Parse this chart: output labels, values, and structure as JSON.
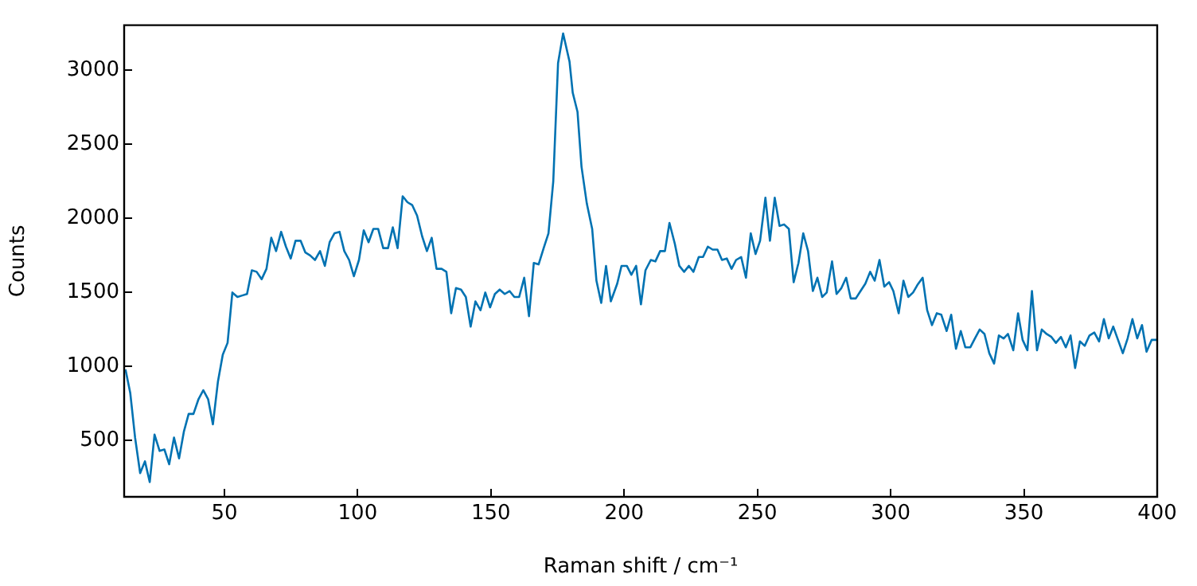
{
  "chart_data": {
    "type": "line",
    "xlabel": "Raman shift / cm⁻¹",
    "ylabel": "Counts",
    "xlim": [
      12.4,
      400
    ],
    "ylim": [
      120,
      3306
    ],
    "xticks": [
      50,
      100,
      150,
      200,
      250,
      300,
      350,
      400
    ],
    "yticks": [
      500,
      1000,
      1500,
      2000,
      2500,
      3000
    ],
    "grid": false,
    "legend": false,
    "marker": "none",
    "line_style": "solid",
    "x": [
      12.9,
      14.7,
      16.5,
      18.4,
      20.2,
      22.0,
      23.8,
      25.7,
      27.5,
      29.3,
      31.1,
      33.0,
      34.8,
      36.6,
      38.4,
      40.3,
      42.1,
      43.9,
      45.7,
      47.6,
      49.4,
      51.2,
      53.0,
      54.9,
      56.7,
      58.5,
      60.3,
      62.1,
      64.0,
      65.8,
      67.6,
      69.4,
      71.3,
      73.1,
      74.9,
      76.7,
      78.6,
      80.4,
      82.2,
      84.0,
      85.9,
      87.7,
      89.5,
      91.3,
      93.2,
      95.0,
      96.8,
      98.6,
      100.5,
      102.3,
      104.1,
      105.9,
      107.7,
      109.6,
      111.4,
      113.2,
      115.0,
      116.9,
      118.7,
      120.5,
      122.3,
      124.2,
      126.0,
      127.8,
      129.6,
      131.5,
      133.3,
      135.1,
      136.9,
      138.8,
      140.6,
      142.4,
      144.2,
      146.1,
      147.9,
      149.7,
      151.5,
      153.3,
      155.2,
      157.0,
      158.8,
      160.6,
      162.5,
      164.3,
      166.1,
      167.9,
      169.8,
      171.6,
      173.4,
      175.2,
      177.1,
      179.5,
      180.7,
      182.5,
      184.0,
      186.0,
      188.0,
      189.6,
      191.4,
      193.2,
      195.0,
      197.4,
      199.0,
      201.0,
      202.7,
      204.5,
      206.3,
      208.0,
      210.0,
      211.7,
      213.5,
      215.3,
      217.0,
      219.0,
      220.7,
      222.5,
      224.3,
      226.0,
      228.0,
      229.6,
      231.4,
      233.2,
      235.0,
      236.7,
      238.5,
      240.3,
      242.0,
      243.9,
      245.7,
      247.5,
      249.3,
      251.0,
      253.0,
      254.7,
      256.5,
      258.3,
      260.0,
      261.8,
      263.6,
      265.4,
      267.2,
      269.0,
      270.8,
      272.5,
      274.3,
      276.0,
      278.0,
      279.7,
      281.5,
      283.3,
      285.0,
      286.9,
      288.7,
      290.5,
      292.3,
      294.0,
      295.8,
      297.6,
      299.4,
      301.0,
      303.0,
      304.8,
      306.6,
      308.4,
      310.0,
      312.0,
      313.7,
      315.5,
      317.3,
      319.0,
      321.0,
      322.7,
      324.5,
      326.3,
      328.0,
      329.9,
      331.6,
      333.4,
      335.2,
      337.0,
      338.8,
      340.6,
      342.4,
      344.0,
      346.0,
      347.8,
      349.5,
      351.3,
      353.0,
      354.9,
      356.7,
      358.5,
      360.3,
      362.0,
      363.9,
      365.7,
      367.5,
      369.2,
      371.0,
      372.8,
      374.6,
      376.4,
      378.2,
      380.0,
      381.8,
      383.5,
      385.3,
      387.1,
      388.9,
      390.7,
      392.5,
      394.3,
      396.0,
      397.9,
      399.7
    ],
    "series": [
      {
        "color": "#0072b2",
        "values": [
          980,
          820,
          520,
          280,
          360,
          220,
          540,
          430,
          440,
          340,
          520,
          380,
          560,
          680,
          680,
          780,
          840,
          780,
          610,
          900,
          1080,
          1160,
          1500,
          1470,
          1480,
          1490,
          1650,
          1640,
          1590,
          1660,
          1870,
          1780,
          1910,
          1810,
          1730,
          1850,
          1850,
          1770,
          1750,
          1720,
          1780,
          1680,
          1840,
          1900,
          1910,
          1780,
          1720,
          1610,
          1720,
          1920,
          1840,
          1930,
          1930,
          1800,
          1800,
          1940,
          1800,
          2150,
          2110,
          2090,
          2020,
          1880,
          1780,
          1870,
          1660,
          1660,
          1640,
          1360,
          1530,
          1520,
          1470,
          1270,
          1440,
          1380,
          1500,
          1400,
          1490,
          1520,
          1490,
          1510,
          1470,
          1470,
          1600,
          1340,
          1700,
          1690,
          1800,
          1900,
          2250,
          3050,
          3250,
          3060,
          2850,
          2720,
          2350,
          2100,
          1930,
          1580,
          1430,
          1680,
          1440,
          1560,
          1680,
          1680,
          1620,
          1680,
          1420,
          1650,
          1720,
          1710,
          1780,
          1780,
          1970,
          1830,
          1680,
          1640,
          1680,
          1640,
          1740,
          1740,
          1810,
          1790,
          1790,
          1720,
          1730,
          1660,
          1720,
          1740,
          1600,
          1900,
          1760,
          1850,
          2140,
          1850,
          2140,
          1950,
          1960,
          1930,
          1570,
          1700,
          1900,
          1780,
          1510,
          1600,
          1470,
          1500,
          1710,
          1490,
          1530,
          1600,
          1460,
          1460,
          1510,
          1560,
          1640,
          1580,
          1720,
          1540,
          1570,
          1510,
          1360,
          1580,
          1470,
          1500,
          1550,
          1600,
          1380,
          1280,
          1360,
          1350,
          1240,
          1350,
          1120,
          1240,
          1130,
          1130,
          1190,
          1250,
          1220,
          1090,
          1020,
          1210,
          1190,
          1220,
          1110,
          1360,
          1180,
          1110,
          1510,
          1110,
          1250,
          1220,
          1200,
          1160,
          1200,
          1130,
          1210,
          990,
          1170,
          1140,
          1210,
          1230,
          1170,
          1320,
          1190,
          1270,
          1180,
          1090,
          1190,
          1320,
          1190,
          1280,
          1100,
          1180,
          1180
        ]
      }
    ]
  }
}
